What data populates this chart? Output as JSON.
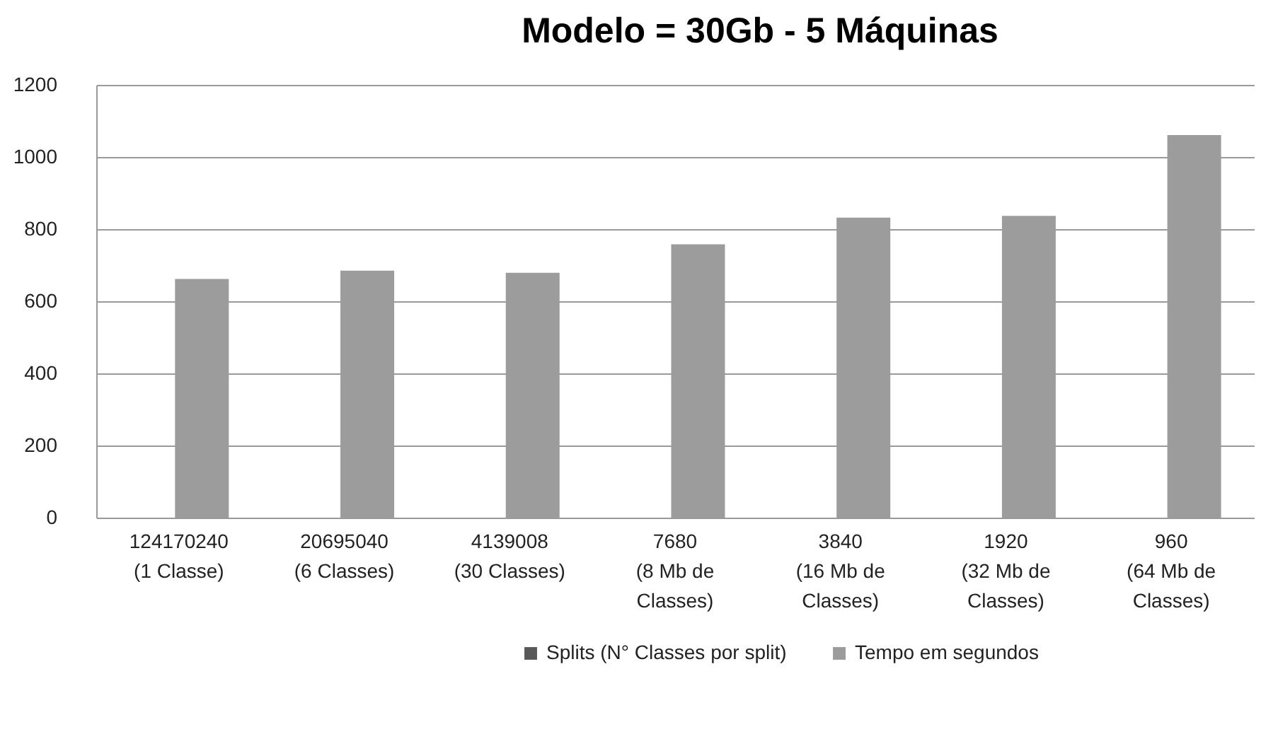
{
  "chart_data": {
    "type": "bar",
    "title": "Modelo = 30Gb  - 5 Máquinas",
    "categories": [
      "124170240 (1 Classe)",
      "20695040 (6 Classes)",
      "4139008 (30 Classes)",
      "7680 (8 Mb de Classes)",
      "3840 (16 Mb de Classes)",
      "1920 (32 Mb de Classes)",
      "960 (64 Mb de Classes)"
    ],
    "series": [
      {
        "name": "Splits (N° Classes por split)",
        "color": "#595959",
        "values": [
          null,
          null,
          null,
          null,
          null,
          null,
          null
        ]
      },
      {
        "name": "Tempo em segundos",
        "color": "#9c9c9c",
        "values": [
          662,
          685,
          679,
          758,
          832,
          837,
          1061
        ]
      }
    ],
    "ylim": [
      0,
      1200
    ],
    "yticks": [
      0,
      200,
      400,
      600,
      800,
      1000,
      1200
    ],
    "grid": "y",
    "legend": "bottom"
  }
}
